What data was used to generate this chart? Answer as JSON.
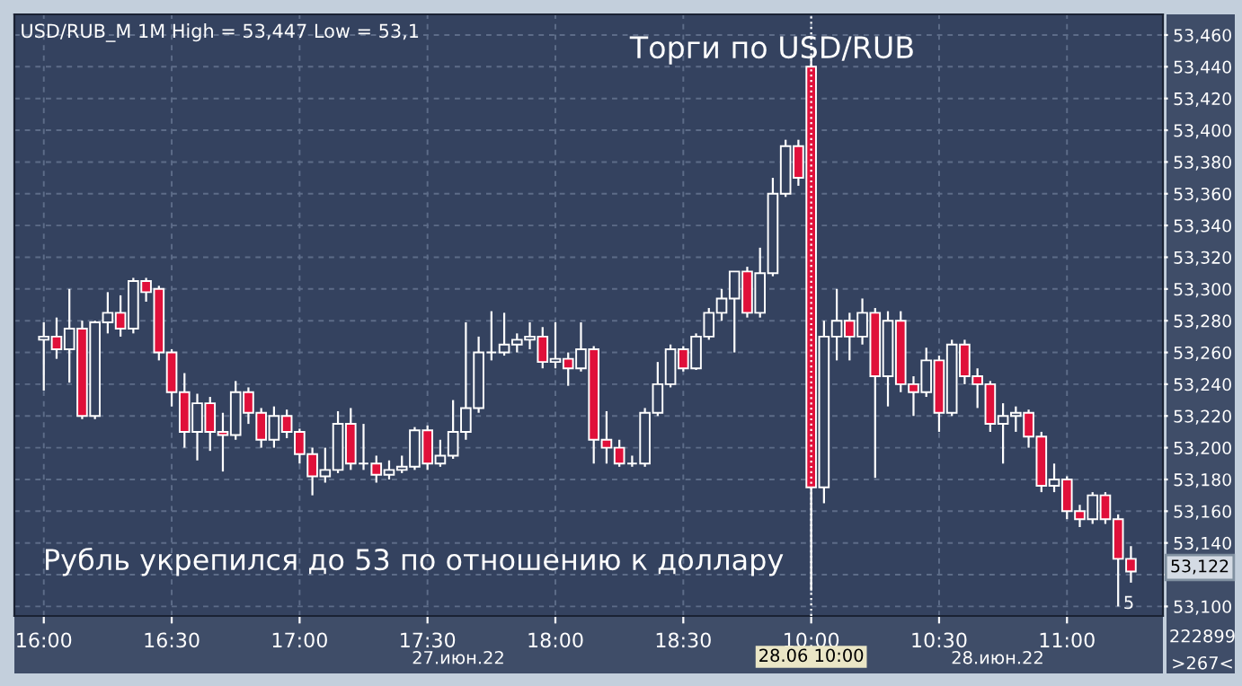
{
  "chart_data": {
    "type": "candlestick",
    "title": "Торги по USD/RUB",
    "categories": [
      "16:00",
      null,
      null,
      null,
      null,
      null,
      null,
      null,
      null,
      null,
      "16:30",
      null,
      null,
      null,
      null,
      null,
      null,
      null,
      null,
      null,
      "17:00",
      null,
      null,
      null,
      null,
      null,
      null,
      null,
      null,
      null,
      "17:30",
      null,
      null,
      null,
      null,
      null,
      null,
      null,
      null,
      null,
      "18:00",
      null,
      null,
      null,
      null,
      null,
      null,
      null,
      null,
      null,
      "18:30",
      null,
      null,
      null,
      null,
      null,
      null,
      null,
      null,
      null,
      "10:00",
      null,
      null,
      null,
      null,
      null,
      null,
      null,
      null,
      null,
      "10:30",
      null,
      null,
      null,
      null,
      null,
      null,
      null,
      null,
      null,
      "11:00",
      null,
      null,
      null,
      null,
      null
    ],
    "ohlc": [
      [
        53268,
        53279,
        53236,
        53270
      ],
      [
        53270,
        53282,
        53256,
        53262
      ],
      [
        53262,
        53300,
        53241,
        53275
      ],
      [
        53275,
        53280,
        53218,
        53220
      ],
      [
        53220,
        53280,
        53218,
        53279
      ],
      [
        53279,
        53298,
        53272,
        53285
      ],
      [
        53285,
        53296,
        53270,
        53275
      ],
      [
        53275,
        53307,
        53272,
        53305
      ],
      [
        53305,
        53307,
        53292,
        53298
      ],
      [
        53300,
        53302,
        53255,
        53260
      ],
      [
        53260,
        53262,
        53226,
        53235
      ],
      [
        53235,
        53247,
        53200,
        53210
      ],
      [
        53210,
        53234,
        53192,
        53228
      ],
      [
        53228,
        53232,
        53198,
        53210
      ],
      [
        53210,
        53222,
        53185,
        53208
      ],
      [
        53208,
        53242,
        53205,
        53235
      ],
      [
        53235,
        53238,
        53215,
        53222
      ],
      [
        53222,
        53225,
        53200,
        53205
      ],
      [
        53205,
        53226,
        53200,
        53220
      ],
      [
        53220,
        53224,
        53206,
        53210
      ],
      [
        53210,
        53212,
        53190,
        53196
      ],
      [
        53196,
        53200,
        53170,
        53182
      ],
      [
        53182,
        53200,
        53178,
        53186
      ],
      [
        53186,
        53223,
        53184,
        53215
      ],
      [
        53215,
        53225,
        53186,
        53190
      ],
      [
        53190,
        53215,
        53186,
        53190
      ],
      [
        53190,
        53195,
        53178,
        53183
      ],
      [
        53183,
        53192,
        53180,
        53186
      ],
      [
        53186,
        53195,
        53184,
        53188
      ],
      [
        53188,
        53213,
        53186,
        53211
      ],
      [
        53211,
        53214,
        53186,
        53190
      ],
      [
        53190,
        53205,
        53188,
        53195
      ],
      [
        53195,
        53230,
        53193,
        53210
      ],
      [
        53210,
        53279,
        53205,
        53225
      ],
      [
        53225,
        53270,
        53222,
        53260
      ],
      [
        53260,
        53286,
        53255,
        53260
      ],
      [
        53260,
        53285,
        53258,
        53265
      ],
      [
        53265,
        53272,
        53260,
        53268
      ],
      [
        53268,
        53279,
        53262,
        53270
      ],
      [
        53270,
        53276,
        53250,
        53254
      ],
      [
        53254,
        53279,
        53250,
        53256
      ],
      [
        53256,
        53260,
        53239,
        53250
      ],
      [
        53250,
        53279,
        53248,
        53262
      ],
      [
        53262,
        53264,
        53190,
        53205
      ],
      [
        53205,
        53223,
        53190,
        53200
      ],
      [
        53200,
        53205,
        53188,
        53190
      ],
      [
        53190,
        53195,
        53188,
        53190
      ],
      [
        53190,
        53225,
        53188,
        53222
      ],
      [
        53222,
        53254,
        53220,
        53240
      ],
      [
        53240,
        53265,
        53238,
        53262
      ],
      [
        53262,
        53264,
        53248,
        53250
      ],
      [
        53250,
        53272,
        53249,
        53270
      ],
      [
        53270,
        53288,
        53268,
        53285
      ],
      [
        53285,
        53300,
        53280,
        53294
      ],
      [
        53294,
        53311,
        53260,
        53311
      ],
      [
        53311,
        53314,
        53282,
        53285
      ],
      [
        53285,
        53326,
        53282,
        53310
      ],
      [
        53310,
        53370,
        53308,
        53360
      ],
      [
        53360,
        53394,
        53358,
        53390
      ],
      [
        53390,
        53394,
        53365,
        53370
      ],
      [
        53440,
        53447,
        53110,
        53175
      ],
      [
        53175,
        53280,
        53165,
        53270
      ],
      [
        53270,
        53300,
        53255,
        53280
      ],
      [
        53280,
        53285,
        53255,
        53270
      ],
      [
        53270,
        53294,
        53265,
        53285
      ],
      [
        53285,
        53288,
        53181,
        53245
      ],
      [
        53245,
        53286,
        53226,
        53280
      ],
      [
        53280,
        53286,
        53235,
        53240
      ],
      [
        53240,
        53245,
        53220,
        53235
      ],
      [
        53235,
        53263,
        53232,
        53255
      ],
      [
        53255,
        53258,
        53210,
        53222
      ],
      [
        53222,
        53268,
        53220,
        53265
      ],
      [
        53265,
        53268,
        53240,
        53245
      ],
      [
        53245,
        53250,
        53225,
        53240
      ],
      [
        53240,
        53242,
        53210,
        53215
      ],
      [
        53215,
        53228,
        53190,
        53220
      ],
      [
        53220,
        53226,
        53210,
        53222
      ],
      [
        53222,
        53224,
        53200,
        53207
      ],
      [
        53207,
        53210,
        53172,
        53176
      ],
      [
        53176,
        53190,
        53172,
        53180
      ],
      [
        53180,
        53182,
        53155,
        53160
      ],
      [
        53160,
        53164,
        53150,
        53155
      ],
      [
        53155,
        53172,
        53152,
        53170
      ],
      [
        53170,
        53172,
        53152,
        53155
      ],
      [
        53155,
        53158,
        53100,
        53130
      ],
      [
        53130,
        53138,
        53115,
        53122
      ]
    ],
    "colors": [
      "#34425f",
      "#e0103a",
      "#34425f",
      "#e0103a",
      "#34425f",
      "#34425f",
      "#e0103a",
      "#34425f",
      "#e0103a",
      "#e0103a",
      "#e0103a",
      "#e0103a",
      "#34425f",
      "#e0103a",
      "#e0103a",
      "#34425f",
      "#e0103a",
      "#e0103a",
      "#34425f",
      "#e0103a",
      "#e0103a",
      "#e0103a",
      "#34425f",
      "#34425f",
      "#e0103a",
      "#ffffff",
      "#e0103a",
      "#34425f",
      "#34425f",
      "#34425f",
      "#e0103a",
      "#34425f",
      "#34425f",
      "#34425f",
      "#34425f",
      "#ffffff",
      "#34425f",
      "#34425f",
      "#34425f",
      "#e0103a",
      "#34425f",
      "#e0103a",
      "#34425f",
      "#e0103a",
      "#e0103a",
      "#e0103a",
      "#ffffff",
      "#34425f",
      "#34425f",
      "#34425f",
      "#e0103a",
      "#34425f",
      "#34425f",
      "#34425f",
      "#34425f",
      "#e0103a",
      "#34425f",
      "#34425f",
      "#34425f",
      "#e0103a",
      "#e0103a",
      "#34425f",
      "#34425f",
      "#e0103a",
      "#34425f",
      "#e0103a",
      "#34425f",
      "#e0103a",
      "#e0103a",
      "#34425f",
      "#e0103a",
      "#34425f",
      "#e0103a",
      "#e0103a",
      "#e0103a",
      "#34425f",
      "#34425f",
      "#e0103a",
      "#e0103a",
      "#34425f",
      "#e0103a",
      "#e0103a",
      "#34425f",
      "#e0103a",
      "#e0103a",
      "#e0103a"
    ],
    "color": "#ffffff",
    "ylim": [
      53094,
      53473
    ],
    "yticks": [
      {
        "value": 53100,
        "label": "53,100"
      },
      {
        "value": 53120,
        "label": null
      },
      {
        "value": 53140,
        "label": "53,140"
      },
      {
        "value": 53160,
        "label": "53,160"
      },
      {
        "value": 53180,
        "label": "53,180"
      },
      {
        "value": 53200,
        "label": "53,200"
      },
      {
        "value": 53220,
        "label": "53,220"
      },
      {
        "value": 53240,
        "label": "53,240"
      },
      {
        "value": 53260,
        "label": "53,260"
      },
      {
        "value": 53280,
        "label": "53,280"
      },
      {
        "value": 53300,
        "label": "53,300"
      },
      {
        "value": 53320,
        "label": "53,320"
      },
      {
        "value": 53340,
        "label": "53,340"
      },
      {
        "value": 53360,
        "label": "53,360"
      },
      {
        "value": 53380,
        "label": "53,380"
      },
      {
        "value": 53400,
        "label": "53,400"
      },
      {
        "value": 53420,
        "label": "53,420"
      },
      {
        "value": 53440,
        "label": "53,440"
      },
      {
        "value": 53460,
        "label": "53,460"
      }
    ],
    "grid": true,
    "ref_lines": [
      {
        "axis": "x",
        "value": "10:00",
        "label": "28.06 10:00",
        "color": "#ffffff",
        "line_style": "dotted"
      }
    ],
    "annotations": [
      "USD/RUB_M 1M High = 53,447 Low = 53,1",
      "Рубль укрепился до 53 по отношению к доллару",
      "27.июн.22",
      "28.июн.22",
      "222899",
      ">267<",
      "5",
      "53,122"
    ]
  }
}
